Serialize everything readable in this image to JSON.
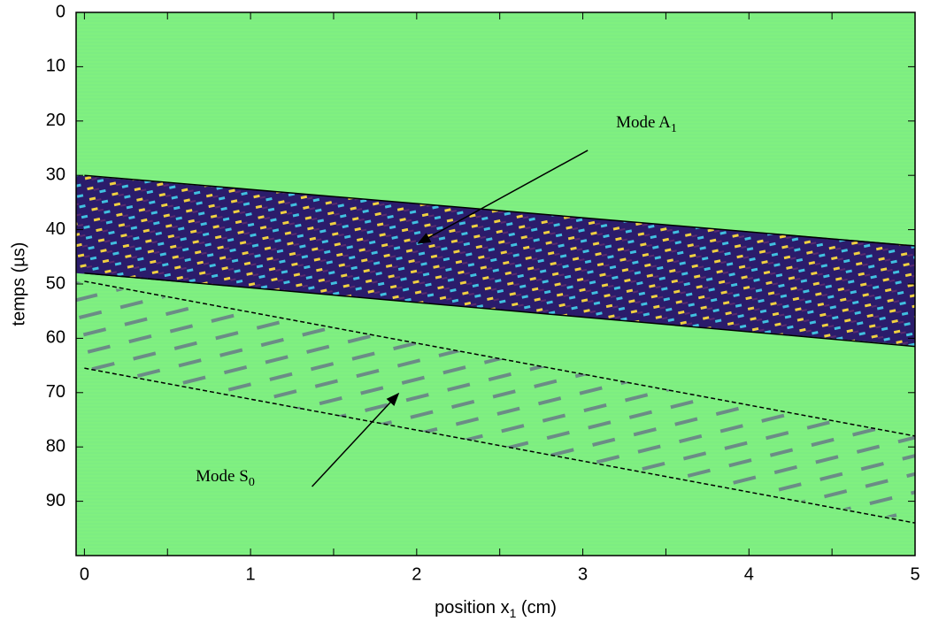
{
  "chart_data": {
    "type": "heatmap-annotated",
    "xlabel": {
      "text": "position x",
      "sub": "1",
      "unit": " (cm)"
    },
    "ylabel": "temps (µs)",
    "xlim": [
      -0.05,
      5
    ],
    "ylim": [
      0,
      100
    ],
    "y_inverted": true,
    "xticks": [
      0,
      1,
      2,
      3,
      4,
      5
    ],
    "x_minor_ticks": [
      0.5,
      1.5,
      2.5,
      3.5,
      4.5
    ],
    "yticks": [
      0,
      10,
      20,
      30,
      40,
      50,
      60,
      70,
      80,
      90
    ],
    "background_color": "#80f080",
    "lines": [
      {
        "style": "solid",
        "color": "#000000",
        "x": [
          0,
          5
        ],
        "y": [
          30,
          43
        ]
      },
      {
        "style": "solid",
        "color": "#000000",
        "x": [
          0,
          5
        ],
        "y": [
          48,
          61.5
        ]
      },
      {
        "style": "dashed",
        "color": "#000000",
        "x": [
          0,
          5
        ],
        "y": [
          49.5,
          78
        ]
      },
      {
        "style": "dashed",
        "color": "#000000",
        "x": [
          0,
          5
        ],
        "y": [
          65.5,
          94
        ]
      }
    ],
    "annotations": [
      {
        "text": "Mode A",
        "sub": "1",
        "x": 3.2,
        "y": 20.5,
        "arrow_from": [
          3.03,
          25.4
        ],
        "arrow_to": [
          2.01,
          42.5
        ]
      },
      {
        "text": "Mode S",
        "sub": "0",
        "x": 0.67,
        "y": 85.7,
        "arrow_from": [
          1.37,
          87.3
        ],
        "arrow_to": [
          1.89,
          70.2
        ]
      }
    ]
  }
}
